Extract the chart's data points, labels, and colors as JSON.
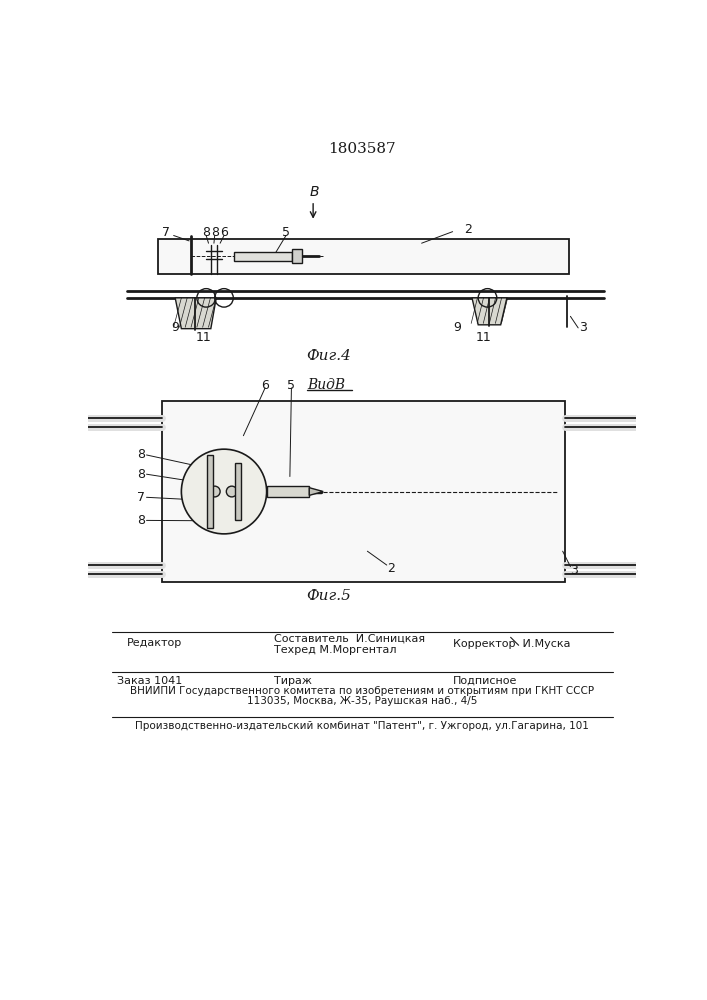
{
  "patent_number": "1803587",
  "fig4_label": "Фиг.4",
  "fig5_label": "Фиг.5",
  "view_label": "ВидВ",
  "bg_color": "#ffffff",
  "line_color": "#1a1a1a"
}
